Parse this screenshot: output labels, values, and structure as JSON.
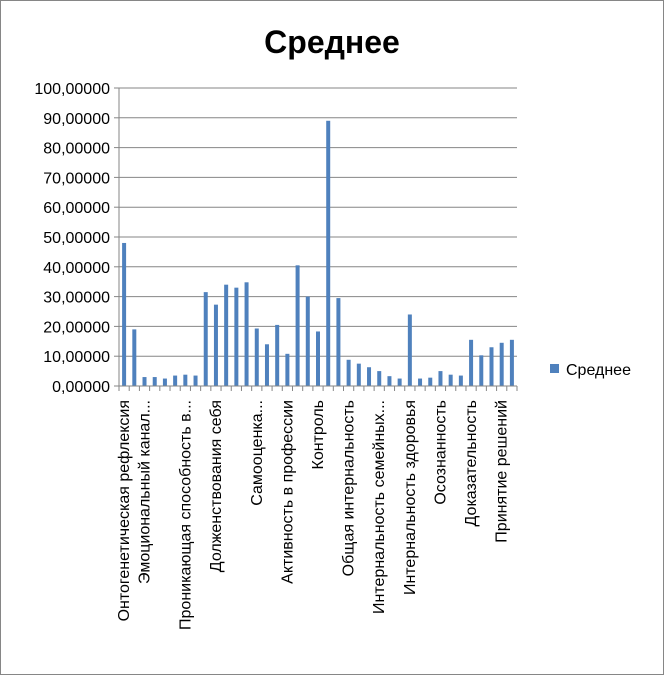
{
  "chart_data": {
    "type": "bar",
    "title": "Среднее",
    "xlabel": "",
    "ylabel": "",
    "ylim": [
      0,
      100
    ],
    "yticks": [
      "0,00000",
      "10,00000",
      "20,00000",
      "30,00000",
      "40,00000",
      "50,00000",
      "60,00000",
      "70,00000",
      "80,00000",
      "90,00000",
      "100,00000"
    ],
    "grid": true,
    "legend_position": "right",
    "series": [
      {
        "name": "Среднее",
        "color": "#4f81bd",
        "values": [
          48,
          19,
          3,
          3,
          2.5,
          3.5,
          3.8,
          3.5,
          31.5,
          27.3,
          34,
          33,
          34.8,
          19.3,
          14,
          20.5,
          10.8,
          40.5,
          30,
          18.3,
          89,
          29.5,
          8.8,
          7.5,
          6.3,
          5,
          3.3,
          2.5,
          24,
          2.5,
          2.8,
          5,
          3.8,
          3.5,
          15.5,
          10.3,
          13,
          14.5,
          15.5
        ]
      }
    ],
    "category_labels": [
      {
        "index": 0,
        "text": "Онтогенетическая рефлексия"
      },
      {
        "index": 2,
        "text": "Эмоциональный канал..."
      },
      {
        "index": 6,
        "text": "Проникающая способность в..."
      },
      {
        "index": 9,
        "text": "Долженствования себя"
      },
      {
        "index": 13,
        "text": "Самооценка..."
      },
      {
        "index": 16,
        "text": "Активность в профессии"
      },
      {
        "index": 19,
        "text": "Контроль"
      },
      {
        "index": 22,
        "text": "Общая интернальность"
      },
      {
        "index": 25,
        "text": "Интернальность семейных..."
      },
      {
        "index": 28,
        "text": "Интернальность здоровья"
      },
      {
        "index": 31,
        "text": "Осознанность"
      },
      {
        "index": 34,
        "text": "Доказательность"
      },
      {
        "index": 37,
        "text": "Принятие решений"
      }
    ]
  }
}
